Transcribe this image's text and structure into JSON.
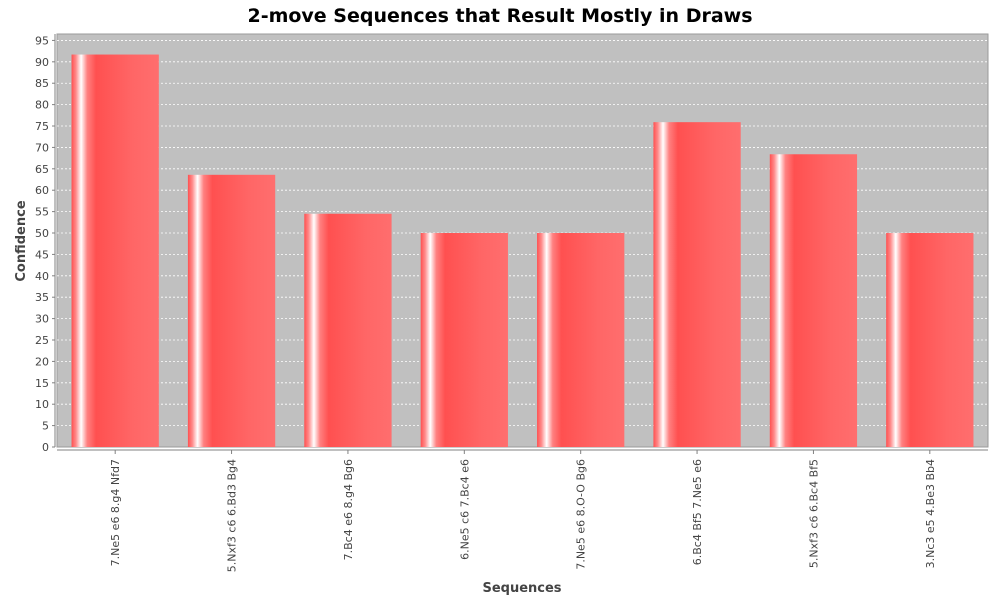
{
  "chart_data": {
    "type": "bar",
    "title": "2-move Sequences that Result Mostly in Draws",
    "xlabel": "Sequences",
    "ylabel": "Confidence",
    "categories": [
      "7.Ne5 e6 8.g4 Nfd7",
      "5.Nxf3 c6 6.Bd3 Bg4",
      "7.Bc4 e6 8.g4 Bg6",
      "6.Ne5 c6 7.Bc4 e6",
      "7.Ne5 e6 8.O-O Bg6",
      "6.Bc4 Bf5 7.Ne5 e6",
      "5.Nxf3 c6 6.Bc4 Bf5",
      "3.Nc3 e5 4.Be3 Bb4"
    ],
    "values": [
      91.7,
      63.6,
      54.5,
      50.0,
      50.0,
      75.9,
      68.4,
      50.0
    ],
    "ylim": [
      0,
      96.5
    ],
    "yticks": [
      0,
      5,
      10,
      15,
      20,
      25,
      30,
      35,
      40,
      45,
      50,
      55,
      60,
      65,
      70,
      75,
      80,
      85,
      90,
      95
    ],
    "grid": true,
    "legend": "none",
    "colors": {
      "bar": "#ff5a5a",
      "plot_background": "#c0c0c0",
      "gridline": "#ffffff"
    }
  }
}
